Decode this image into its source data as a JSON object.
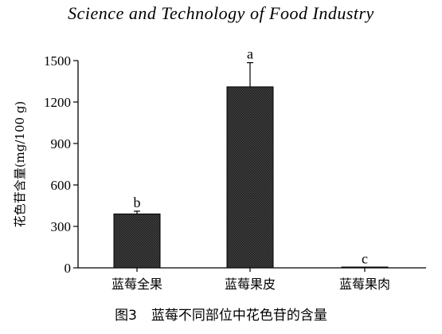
{
  "header": {
    "journal_title": "Science and Technology of Food Industry"
  },
  "caption": {
    "figure_number": "图3",
    "title": "蓝莓不同部位中花色苷的含量"
  },
  "chart_data": {
    "type": "bar",
    "categories": [
      "蓝莓全果",
      "蓝莓果皮",
      "蓝莓果肉"
    ],
    "values": [
      390,
      1310,
      3
    ],
    "errors": [
      20,
      175,
      0
    ],
    "significance_labels": [
      "b",
      "a",
      "c"
    ],
    "ylabel": "花色苷含量(mg/100 g)",
    "xlabel": "",
    "ylim": [
      0,
      1500
    ],
    "yticks": [
      0,
      300,
      600,
      900,
      1200,
      1500
    ],
    "bar_fill": "#3a3a3a",
    "grid": false,
    "legend": "none"
  }
}
